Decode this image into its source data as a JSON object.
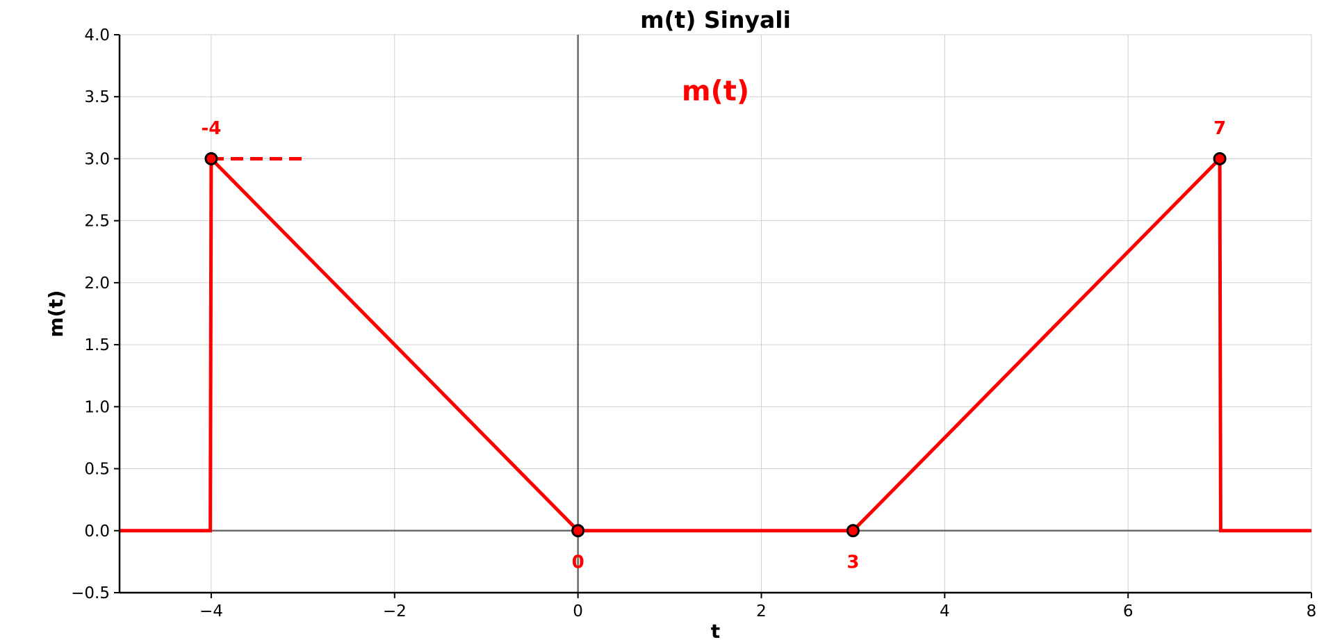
{
  "chart_data": {
    "type": "line",
    "title": "m(t) Sinyali",
    "xlabel": "t",
    "ylabel": "m(t)",
    "xlim": [
      -5,
      8
    ],
    "ylim": [
      -0.5,
      4.0
    ],
    "x_ticks": [
      -4,
      -2,
      0,
      2,
      4,
      6,
      8
    ],
    "x_tick_labels": [
      "−4",
      "−2",
      "0",
      "2",
      "4",
      "6",
      "8"
    ],
    "y_ticks": [
      -0.5,
      0.0,
      0.5,
      1.0,
      1.5,
      2.0,
      2.5,
      3.0,
      3.5,
      4.0
    ],
    "y_tick_labels": [
      "−0.5",
      "0.0",
      "0.5",
      "1.0",
      "1.5",
      "2.0",
      "2.5",
      "3.0",
      "3.5",
      "4.0"
    ],
    "grid": true,
    "series": [
      {
        "color": "#ff0000",
        "x": [
          -5,
          -4.01,
          -4,
          0,
          3,
          7,
          7.01,
          8
        ],
        "y": [
          0,
          0,
          3,
          0,
          0,
          3,
          0,
          0
        ]
      }
    ],
    "markers": [
      {
        "x": -4,
        "y": 3
      },
      {
        "x": 0,
        "y": 0
      },
      {
        "x": 3,
        "y": 0
      },
      {
        "x": 7,
        "y": 3
      }
    ],
    "dashed_segment": {
      "x": [
        -4,
        -3
      ],
      "y": [
        3,
        3
      ],
      "color": "#ff0000"
    },
    "annotations": [
      {
        "text": "-4",
        "x": -4,
        "y": 3.25
      },
      {
        "text": "0",
        "x": 0,
        "y": -0.25
      },
      {
        "text": "3",
        "x": 3,
        "y": -0.25
      },
      {
        "text": "7",
        "x": 7,
        "y": 3.25
      }
    ],
    "big_label": {
      "text": "m(t)",
      "x": 1.5,
      "y": 3.55
    }
  }
}
